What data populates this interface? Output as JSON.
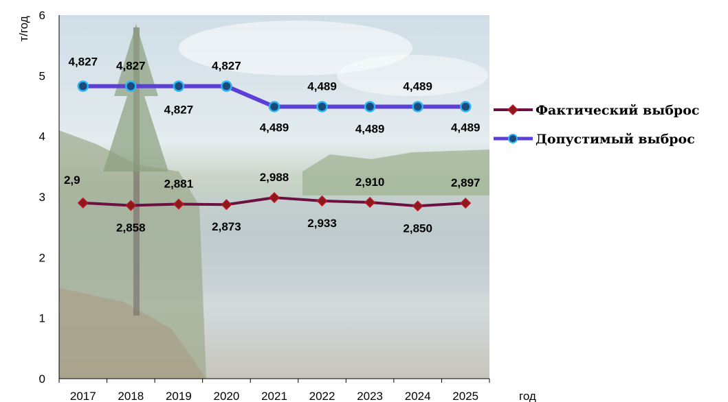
{
  "chart_data": {
    "type": "line",
    "x": [
      "2017",
      "2018",
      "2019",
      "2020",
      "2021",
      "2022",
      "2023",
      "2024",
      "2025"
    ],
    "xlabel": "год",
    "ylabel": "т/год",
    "ylim": [
      0,
      6
    ],
    "yticks": [
      "0",
      "1",
      "2",
      "3",
      "4",
      "5",
      "6"
    ],
    "grid": false,
    "legend_position": "right",
    "series": [
      {
        "name": "Фактический выброс",
        "values": [
          2.9,
          2.858,
          2.881,
          2.873,
          2.988,
          2.933,
          2.91,
          2.85,
          2.897
        ],
        "labels": [
          "2,9",
          "2,858",
          "2,881",
          "2,873",
          "2,988",
          "2,933",
          "2,910",
          "2,850",
          "2,897"
        ],
        "line_color": "#6b1040",
        "marker_color": "#8b1a1a",
        "marker": "diamond"
      },
      {
        "name": "Допустимый выброс",
        "values": [
          4.827,
          4.827,
          4.827,
          4.827,
          4.489,
          4.489,
          4.489,
          4.489,
          4.489
        ],
        "labels": [
          "4,827",
          "4,827",
          "4,827",
          "4,827",
          "4,489",
          "4,489",
          "4,489",
          "4,489",
          "4,489"
        ],
        "line_color": "#5b3fd6",
        "marker_color": "#1a4a7a",
        "marker_edge": "#29b6f6",
        "marker": "circle"
      }
    ]
  }
}
